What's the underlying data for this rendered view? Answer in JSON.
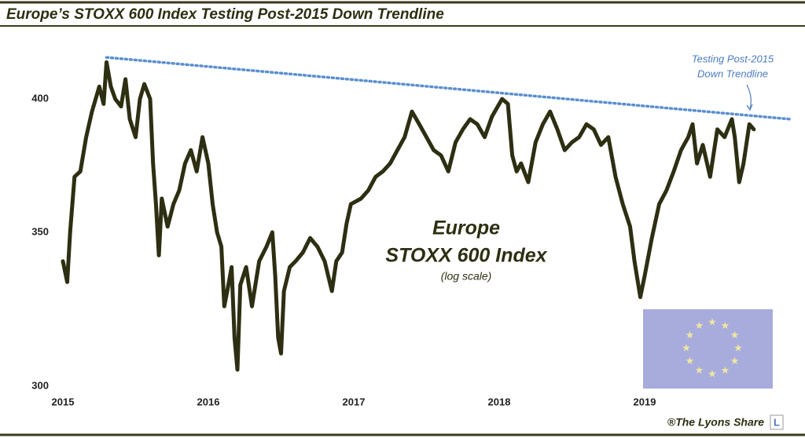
{
  "chart_data": {
    "type": "line",
    "title": "Europe’s STOXX 600 Index Testing Post-2015 Down Trendline",
    "label_main": "Europe",
    "label_sub": "STOXX 600 Index",
    "label_scale": "(log scale)",
    "annotation": [
      "Testing Post-2015",
      "Down Trendline"
    ],
    "watermark": "®The Lyons Share",
    "logo": "L",
    "log_scale": true,
    "xlim": [
      2015,
      2020
    ],
    "xticks": [
      2015,
      2016,
      2017,
      2018,
      2019
    ],
    "ylim": [
      300,
      420
    ],
    "yticks": [
      300,
      350,
      400
    ],
    "series": [
      {
        "color": "#2e2e12",
        "x": [
          2015.0,
          2015.03,
          2015.05,
          2015.08,
          2015.12,
          2015.16,
          2015.2,
          2015.25,
          2015.28,
          2015.3,
          2015.33,
          2015.36,
          2015.4,
          2015.43,
          2015.46,
          2015.5,
          2015.53,
          2015.56,
          2015.6,
          2015.62,
          2015.64,
          2015.66,
          2015.68,
          2015.72,
          2015.76,
          2015.8,
          2015.84,
          2015.88,
          2015.92,
          2015.96,
          2016.0,
          2016.03,
          2016.06,
          2016.09,
          2016.11,
          2016.13,
          2016.16,
          2016.18,
          2016.2,
          2016.22,
          2016.26,
          2016.3,
          2016.35,
          2016.4,
          2016.44,
          2016.46,
          2016.48,
          2016.5,
          2016.52,
          2016.56,
          2016.6,
          2016.65,
          2016.7,
          2016.75,
          2016.8,
          2016.85,
          2016.88,
          2016.92,
          2016.95,
          2016.98,
          2017.05,
          2017.1,
          2017.15,
          2017.2,
          2017.25,
          2017.3,
          2017.35,
          2017.4,
          2017.45,
          2017.5,
          2017.55,
          2017.6,
          2017.65,
          2017.7,
          2017.75,
          2017.8,
          2017.85,
          2017.9,
          2017.95,
          2018.02,
          2018.06,
          2018.09,
          2018.12,
          2018.15,
          2018.2,
          2018.25,
          2018.3,
          2018.35,
          2018.4,
          2018.45,
          2018.5,
          2018.55,
          2018.6,
          2018.65,
          2018.7,
          2018.75,
          2018.8,
          2018.85,
          2018.9,
          2018.93,
          2018.97,
          2019.0,
          2019.05,
          2019.1,
          2019.15,
          2019.2,
          2019.25,
          2019.3,
          2019.33,
          2019.36,
          2019.4,
          2019.45,
          2019.5,
          2019.55,
          2019.6,
          2019.62,
          2019.65,
          2019.68,
          2019.72,
          2019.75
        ],
        "values": [
          340,
          333,
          350,
          370,
          372,
          385,
          395,
          405,
          398,
          415,
          405,
          400,
          397,
          408,
          392,
          385,
          400,
          406,
          400,
          375,
          360,
          342,
          362,
          352,
          360,
          365,
          375,
          380,
          372,
          385,
          375,
          360,
          350,
          345,
          325,
          330,
          338,
          315,
          305,
          332,
          338,
          325,
          340,
          345,
          350,
          335,
          315,
          310,
          330,
          338,
          340,
          343,
          348,
          345,
          340,
          330,
          340,
          343,
          353,
          360,
          362,
          365,
          370,
          372,
          375,
          380,
          385,
          395,
          390,
          385,
          380,
          378,
          372,
          383,
          388,
          392,
          390,
          385,
          393,
          400,
          398,
          378,
          372,
          375,
          368,
          383,
          390,
          395,
          388,
          380,
          383,
          385,
          390,
          388,
          382,
          385,
          370,
          360,
          352,
          340,
          328,
          335,
          348,
          360,
          365,
          372,
          380,
          385,
          390,
          375,
          382,
          370,
          388,
          385,
          392,
          385,
          368,
          375,
          390,
          388
        ]
      },
      {
        "color": "#5b8fd0",
        "x": [
          2015.3,
          2020
        ],
        "values": [
          417,
          392
        ]
      }
    ]
  }
}
